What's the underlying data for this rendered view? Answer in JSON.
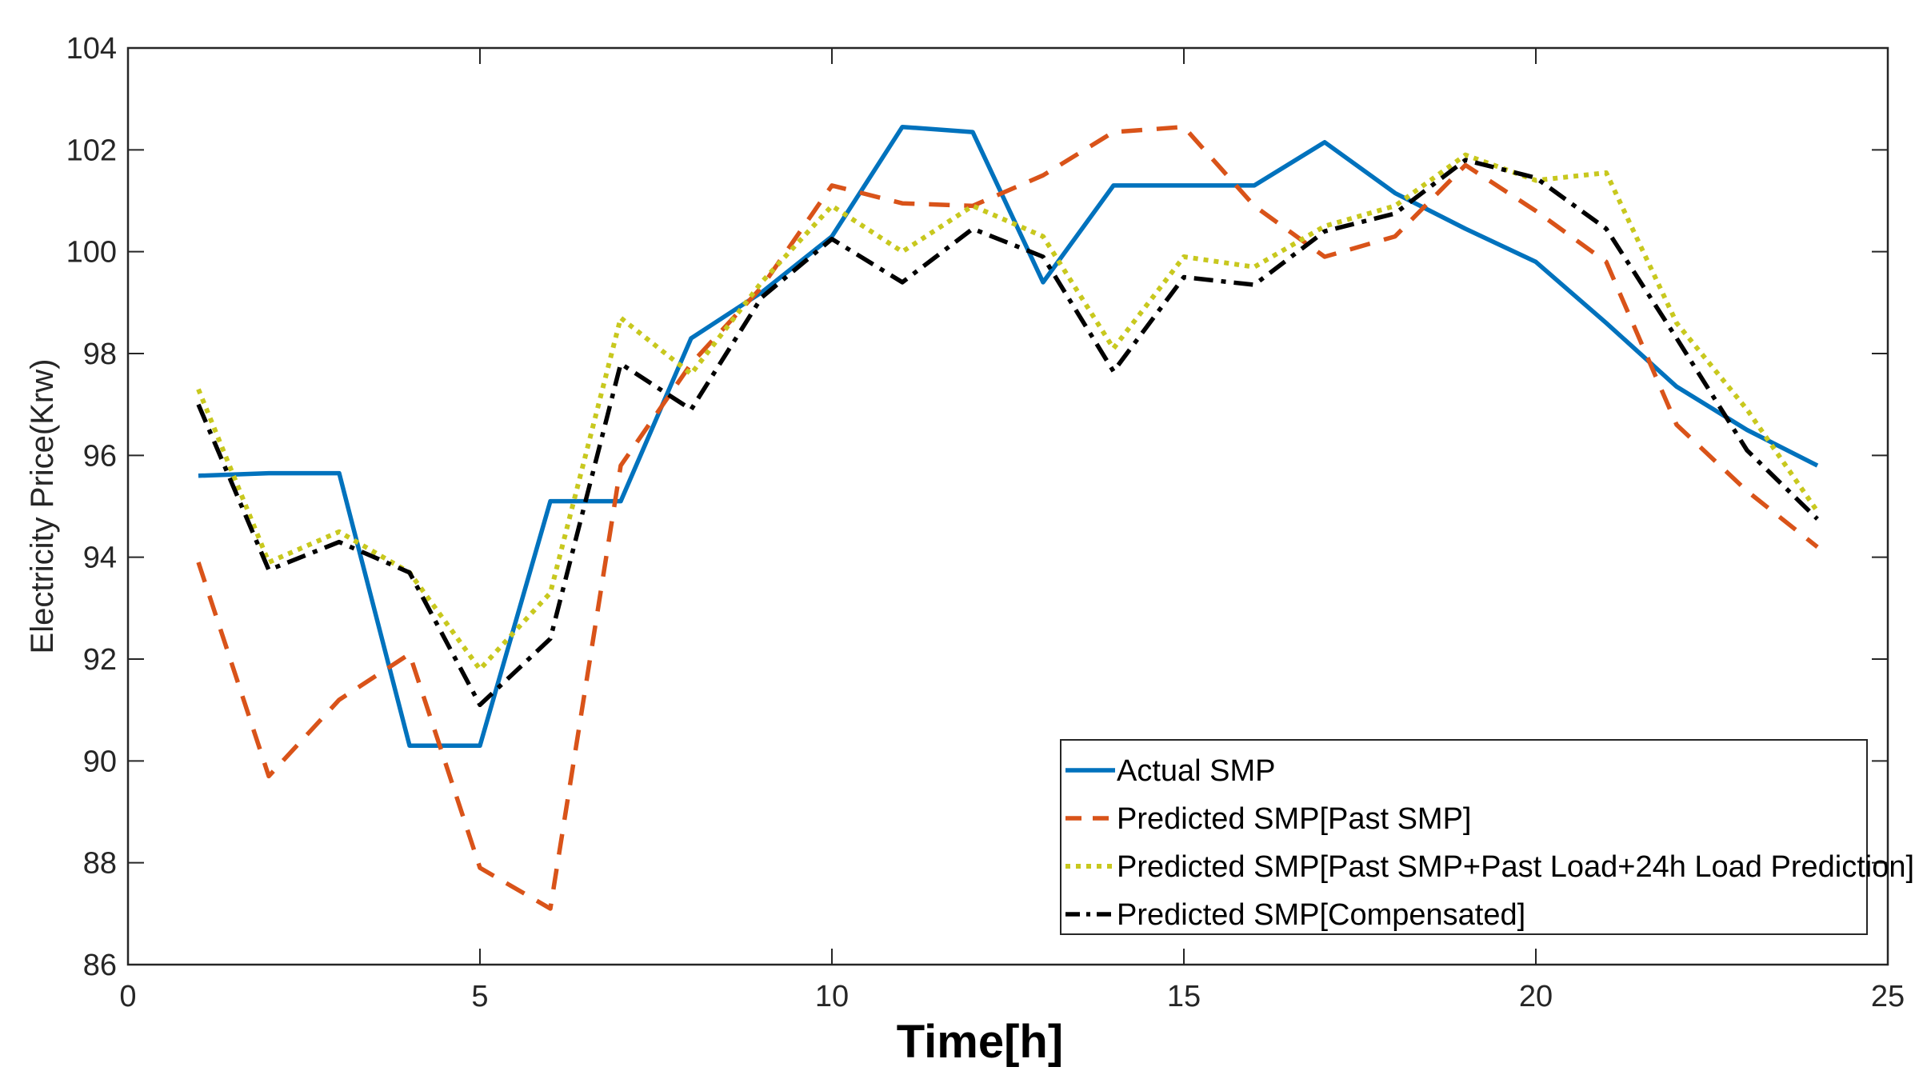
{
  "chart_data": {
    "type": "line",
    "title": "",
    "xlabel": "Time[h]",
    "ylabel": "Electricity Price(Krw)",
    "xlim": [
      0,
      25
    ],
    "ylim": [
      86,
      104
    ],
    "xticks": [
      0,
      5,
      10,
      15,
      20,
      25
    ],
    "yticks": [
      86,
      88,
      90,
      92,
      94,
      96,
      98,
      100,
      102,
      104
    ],
    "x": [
      1,
      2,
      3,
      4,
      5,
      6,
      7,
      8,
      9,
      10,
      11,
      12,
      13,
      14,
      15,
      16,
      17,
      18,
      19,
      20,
      21,
      22,
      23,
      24
    ],
    "legend_position": "bottom-right",
    "series": [
      {
        "name": "Actual SMP",
        "color": "#0072BD",
        "style": "solid",
        "values": [
          95.6,
          95.65,
          95.65,
          90.3,
          90.3,
          95.1,
          95.1,
          98.3,
          99.2,
          100.3,
          102.45,
          102.35,
          99.4,
          101.3,
          101.3,
          101.3,
          102.15,
          101.15,
          100.45,
          99.8,
          98.6,
          97.35,
          96.5,
          95.8
        ]
      },
      {
        "name": "Predicted SMP[Past SMP]",
        "color": "#D95319",
        "style": "dashed",
        "values": [
          93.9,
          89.7,
          91.2,
          92.1,
          87.9,
          87.1,
          95.8,
          97.8,
          99.3,
          101.3,
          100.95,
          100.9,
          101.5,
          102.35,
          102.45,
          100.9,
          99.9,
          100.3,
          101.7,
          100.8,
          99.8,
          96.6,
          95.3,
          94.2
        ]
      },
      {
        "name": "Predicted SMP[Past SMP+Past Load+24h Load Prediction]",
        "color": "#C8C81E",
        "style": "dotted",
        "values": [
          97.3,
          93.9,
          94.5,
          93.7,
          91.8,
          93.3,
          98.7,
          97.6,
          99.4,
          100.9,
          100.0,
          100.9,
          100.3,
          98.1,
          99.9,
          99.7,
          100.5,
          100.9,
          101.9,
          101.4,
          101.55,
          98.6,
          96.9,
          94.9
        ]
      },
      {
        "name": "Predicted SMP[Compensated]",
        "color": "#000000",
        "style": "dashdot",
        "values": [
          97.0,
          93.75,
          94.3,
          93.7,
          91.1,
          92.4,
          97.8,
          96.9,
          99.1,
          100.25,
          99.4,
          100.45,
          99.9,
          97.65,
          99.5,
          99.35,
          100.4,
          100.75,
          101.8,
          101.45,
          100.45,
          98.3,
          96.1,
          94.75
        ]
      }
    ]
  }
}
